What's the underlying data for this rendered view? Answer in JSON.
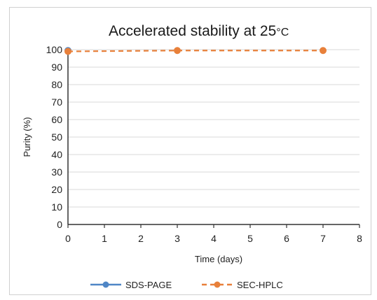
{
  "chart_data": {
    "type": "line",
    "title": "Accelerated stability at 25",
    "title_unit": "°C",
    "xlabel": "Time (days)",
    "ylabel": "Purity (%)",
    "xlim": [
      0,
      8
    ],
    "ylim": [
      0,
      100
    ],
    "x_ticks": [
      "0",
      "1",
      "2",
      "3",
      "4",
      "5",
      "6",
      "7",
      "8"
    ],
    "y_ticks": [
      "0",
      "10",
      "20",
      "30",
      "40",
      "50",
      "60",
      "70",
      "80",
      "90",
      "100"
    ],
    "grid": "horizontal",
    "legend_position": "bottom",
    "series": [
      {
        "name": "SDS-PAGE",
        "color": "#4f86c6",
        "line_style": "solid",
        "points": [
          {
            "x": 0,
            "y": 99.5
          }
        ]
      },
      {
        "name": "SEC-HPLC",
        "color": "#e8803a",
        "line_style": "dashed",
        "points": [
          {
            "x": 0,
            "y": 99.0
          },
          {
            "x": 3,
            "y": 99.5
          },
          {
            "x": 7,
            "y": 99.5
          }
        ]
      }
    ]
  }
}
